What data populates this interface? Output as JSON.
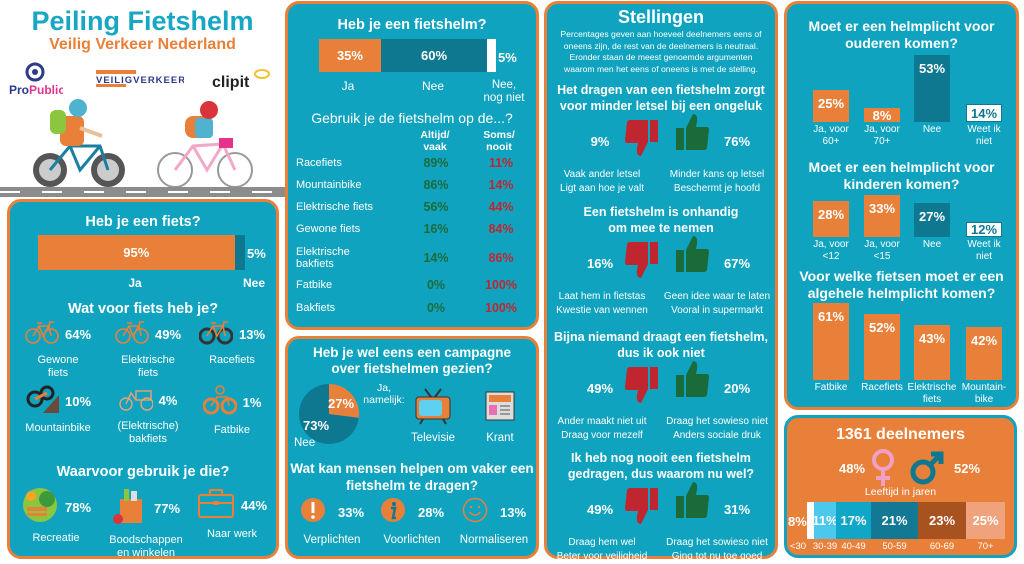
{
  "header": {
    "title": "Peiling Fietshelm",
    "subtitle": "Veilig Verkeer Nederland",
    "logos": [
      "ProPublic",
      "VEILIGVERKEER",
      "clipit"
    ]
  },
  "fiets": {
    "title": "Heb je een fiets?",
    "bar": [
      {
        "label": "Ja",
        "pct": "95%",
        "value": 95,
        "color": "#e8803a"
      },
      {
        "label": "Nee",
        "pct": "5%",
        "value": 5,
        "color": "#0f7891"
      }
    ],
    "types_title": "Wat voor fiets heb je?",
    "types": [
      {
        "pct": "64%",
        "label": "Gewone\nfiets",
        "icon": "bicycle-icon"
      },
      {
        "pct": "49%",
        "label": "Elektrische\nfiets",
        "icon": "e-bike-icon"
      },
      {
        "pct": "13%",
        "label": "Racefiets",
        "icon": "racing-bike-icon"
      },
      {
        "pct": "10%",
        "label": "Mountainbike",
        "icon": "mountainbike-icon"
      },
      {
        "pct": "4%",
        "label": "(Elektrische)\nbakfiets",
        "icon": "cargo-bike-icon"
      },
      {
        "pct": "1%",
        "label": "Fatbike",
        "icon": "fatbike-icon"
      }
    ],
    "use_title": "Waarvoor gebruik je die?",
    "uses": [
      {
        "pct": "78%",
        "label": "Recreatie",
        "icon": "park-bench-icon"
      },
      {
        "pct": "77%",
        "label": "Boodschappen\nen winkelen",
        "icon": "grocery-bag-icon"
      },
      {
        "pct": "44%",
        "label": "Naar werk",
        "icon": "briefcase-icon"
      }
    ]
  },
  "helm": {
    "title": "Heb je een fietshelm?",
    "bar": [
      {
        "label": "Ja",
        "pct": "35%",
        "value": 35,
        "color": "#e8803a"
      },
      {
        "label": "Nee",
        "pct": "60%",
        "value": 60,
        "color": "#0f7891"
      },
      {
        "label": "Nee,\nnog niet",
        "pct": "5%",
        "value": 5,
        "color": "#ffffff"
      }
    ],
    "usage_title": "Gebruik je de fietshelm op de...?",
    "col_always": "Altijd/\nvaak",
    "col_sometimes": "Soms/\nnooit",
    "rows": [
      {
        "name": "Racefiets",
        "always": "89%",
        "sometimes": "11%"
      },
      {
        "name": "Mountainbike",
        "always": "86%",
        "sometimes": "14%"
      },
      {
        "name": "Elektrische fiets",
        "always": "56%",
        "sometimes": "44%"
      },
      {
        "name": "Gewone fiets",
        "always": "16%",
        "sometimes": "84%"
      },
      {
        "name": "Elektrische\nbakfiets",
        "always": "14%",
        "sometimes": "86%"
      },
      {
        "name": "Fatbike",
        "always": "0%",
        "sometimes": "100%"
      },
      {
        "name": "Bakfiets",
        "always": "0%",
        "sometimes": "100%"
      }
    ]
  },
  "campagne": {
    "title": "Heb je wel eens een campagne\nover fietshelmen gezien?",
    "ja": {
      "pct": "27%",
      "value": 27,
      "label": "Ja,\nnamelijk:"
    },
    "nee": {
      "pct": "73%",
      "value": 73,
      "label": "Nee"
    },
    "media": [
      {
        "label": "Televisie",
        "icon": "television-icon"
      },
      {
        "label": "Krant",
        "icon": "newspaper-icon"
      }
    ],
    "help_title": "Wat kan mensen helpen om vaker een\nfietshelm te dragen?",
    "help": [
      {
        "pct": "33%",
        "label": "Verplichten",
        "icon": "exclamation-icon"
      },
      {
        "pct": "28%",
        "label": "Voorlichten",
        "icon": "info-icon"
      },
      {
        "pct": "13%",
        "label": "Normaliseren",
        "icon": "smiley-icon"
      }
    ]
  },
  "stellingen": {
    "title": "Stellingen",
    "intro": "Percentages geven aan hoeveel deelnemers eens of\noneens zijn, de rest van de deelnemers is neutraal.\nEronder staan de meest genoemde argumenten\nwaarom men het eens of oneens is met de stelling.",
    "items": [
      {
        "statement": "Het dragen van een fietshelm zorgt\nvoor minder letsel bij een ongeluk",
        "disagree": "9%",
        "agree": "76%",
        "disagree_reasons": "Vaak ander letsel\nLigt aan hoe je valt",
        "agree_reasons": "Minder kans op letsel\nBeschermt je hoofd"
      },
      {
        "statement": "Een fietshelm is onhandig\nom mee te nemen",
        "disagree": "16%",
        "agree": "67%",
        "disagree_reasons": "Laat hem in fietstas\nKwestie van wennen",
        "agree_reasons": "Geen idee waar te laten\nVooral in supermarkt"
      },
      {
        "statement": "Bijna niemand draagt een fietshelm,\ndus ik ook niet",
        "disagree": "49%",
        "agree": "20%",
        "disagree_reasons": "Ander maakt niet uit\nDraag voor mezelf",
        "agree_reasons": "Draag het sowieso niet\nAnders sociale druk"
      },
      {
        "statement": "Ik heb nog nooit een fietshelm\ngedragen, dus waarom nu wel?",
        "disagree": "49%",
        "agree": "31%",
        "disagree_reasons": "Draag hem wel\nBeter voor veiligheid",
        "agree_reasons": "Draag het sowieso niet\nGing tot nu toe goed"
      }
    ]
  },
  "plicht": [
    {
      "title": "Moet er een helmplicht voor\nouderen komen?",
      "bars": [
        {
          "label": "Ja, voor\n60+",
          "pct": "25%",
          "value": 25,
          "color": "#e8803a"
        },
        {
          "label": "Ja, voor\n70+",
          "pct": "8%",
          "value": 8,
          "color": "#e8803a"
        },
        {
          "label": "Nee",
          "pct": "53%",
          "value": 53,
          "color": "#0f7891"
        },
        {
          "label": "Weet ik\nniet",
          "pct": "14%",
          "value": 14,
          "color": "#ffffff"
        }
      ]
    },
    {
      "title": "Moet er een helmplicht voor\nkinderen komen?",
      "bars": [
        {
          "label": "Ja, voor\n<12",
          "pct": "28%",
          "value": 28,
          "color": "#e8803a"
        },
        {
          "label": "Ja, voor\n<15",
          "pct": "33%",
          "value": 33,
          "color": "#e8803a"
        },
        {
          "label": "Nee",
          "pct": "27%",
          "value": 27,
          "color": "#0f7891"
        },
        {
          "label": "Weet ik\nniet",
          "pct": "12%",
          "value": 12,
          "color": "#ffffff"
        }
      ]
    },
    {
      "title": "Voor welke fietsen moet er een\nalgehele helmplicht komen?",
      "bars": [
        {
          "label": "Fatbike",
          "pct": "61%",
          "value": 61,
          "color": "#e8803a"
        },
        {
          "label": "Racefiets",
          "pct": "52%",
          "value": 52,
          "color": "#e8803a"
        },
        {
          "label": "Elektrische\nfiets",
          "pct": "43%",
          "value": 43,
          "color": "#e8803a"
        },
        {
          "label": "Mountain-\nbike",
          "pct": "42%",
          "value": 42,
          "color": "#e8803a"
        }
      ]
    }
  ],
  "deelnemers": {
    "title": "1361 deelnemers",
    "female": "48%",
    "male": "52%",
    "age_title": "Leeftijd in jaren",
    "ages": [
      {
        "label": "<30",
        "pct": "8%",
        "color": "#ffffff"
      },
      {
        "label": "30-39",
        "pct": "11%",
        "color": "#4cc8ec"
      },
      {
        "label": "40-49",
        "pct": "17%",
        "color": "#10a6c8"
      },
      {
        "label": "50-59",
        "pct": "21%",
        "color": "#127894"
      },
      {
        "label": "60-69",
        "pct": "23%",
        "color": "#a8521f"
      },
      {
        "label": "70+",
        "pct": "25%",
        "color": "#f0a27c"
      }
    ]
  },
  "colors": {
    "teal": "#10a3bf",
    "orange": "#e8803a",
    "dark_teal": "#0f7891",
    "agree": "#1b6b3a",
    "disagree": "#c0262f"
  }
}
